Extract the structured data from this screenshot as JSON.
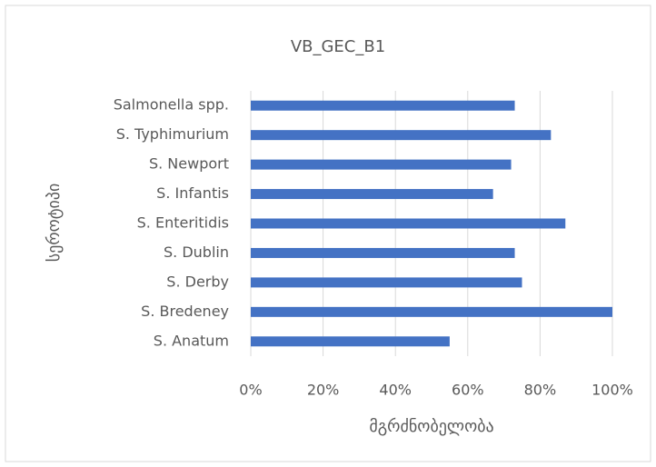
{
  "chart_data": {
    "type": "bar",
    "orientation": "horizontal",
    "title": "VB_GEC_B1",
    "x_label": "მგრძნობელობა",
    "y_label": "სეროტიპი",
    "categories": [
      "S. Anatum",
      "S. Bredeney",
      "S. Derby",
      "S. Dublin",
      "S. Enteritidis",
      "S. Infantis",
      "S. Newport",
      "S. Typhimurium",
      "Salmonella spp."
    ],
    "values": [
      55,
      100,
      75,
      73,
      87,
      67,
      72,
      83,
      73
    ],
    "color": "#4472c4",
    "xlim": [
      0,
      100
    ],
    "xticks": [
      {
        "value": 0,
        "label": "0%"
      },
      {
        "value": 20,
        "label": "20%"
      },
      {
        "value": 40,
        "label": "40%"
      },
      {
        "value": 60,
        "label": "60%"
      },
      {
        "value": 80,
        "label": "80%"
      },
      {
        "value": 100,
        "label": "100%"
      }
    ],
    "grid": true
  }
}
